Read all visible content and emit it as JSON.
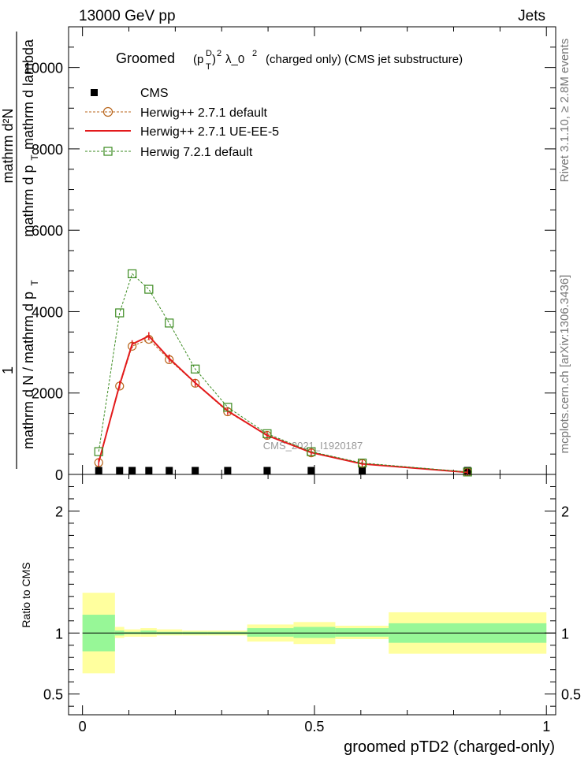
{
  "header": {
    "left": "13000 GeV pp",
    "right": "Jets"
  },
  "side_labels": {
    "rivet": "Rivet 3.1.10, ≥ 2.8M events",
    "mcplots": "mcplots.cern.ch [arXiv:1306.3436]"
  },
  "chart_data": [
    {
      "type": "line",
      "title": "Groomed (p_T^D)^2 λ_0^2 (charged only) (CMS jet substructure)",
      "title_parts": {
        "word": "Groomed",
        "p": "(p",
        "sup_D": "D",
        "sub_T": "T",
        "close": ")",
        "sup_2a": "2",
        "lambda": "λ_0",
        "sup_2b": "2",
        "rest": "(charged only) (CMS jet substructure)"
      },
      "ylabel_numerator_main": "1",
      "ylabel_numerator": "mathrm d²N",
      "ylabel_den_prefix": "mathrm d p",
      "ylabel_den_sub": "T",
      "ylabel_den_suffix": "mathrm d lambda",
      "ylabel_main_prefix": "mathrm d N / mathrm d p",
      "ylabel_main_sub": "T",
      "watermark": "CMS_2021_I1920187",
      "ylim": [
        0,
        11000
      ],
      "xlim": [
        -0.03,
        1.02
      ],
      "yticks": [
        0,
        2000,
        4000,
        6000,
        8000,
        10000
      ],
      "ytick_labels": [
        "0",
        "2000",
        "4000",
        "6000",
        "8000",
        "10000"
      ],
      "legend_position": "top-left",
      "legend": [
        "CMS",
        "Herwig++ 2.7.1 default",
        "Herwig++ 2.7.1 UE-EE-5",
        "Herwig 7.2.1 default"
      ],
      "bin_edges": [
        0,
        0.07,
        0.09,
        0.125,
        0.16,
        0.215,
        0.27,
        0.355,
        0.455,
        0.545,
        0.66,
        1.0
      ],
      "x": [
        0.035,
        0.08,
        0.107,
        0.143,
        0.187,
        0.243,
        0.313,
        0.398,
        0.493,
        0.603,
        0.83
      ],
      "series": [
        {
          "name": "CMS",
          "values": [
            10,
            20,
            30,
            25,
            20,
            15,
            10,
            10,
            10,
            10,
            5
          ],
          "color": "#000000",
          "style": "square-filled"
        },
        {
          "name": "Herwig++ 2.7.1 default",
          "values": [
            290,
            2170,
            3150,
            3320,
            2820,
            2240,
            1540,
            960,
            530,
            270,
            60
          ],
          "color": "#b8651b",
          "style": "circle-dashed"
        },
        {
          "name": "Herwig++ 2.7.1 UE-EE-5",
          "values": [
            300,
            2200,
            3200,
            3400,
            2850,
            2250,
            1560,
            960,
            540,
            260,
            50
          ],
          "color": "#e31a1c",
          "style": "solid"
        },
        {
          "name": "Herwig 7.2.1 default",
          "values": [
            560,
            3970,
            4930,
            4550,
            3720,
            2590,
            1650,
            1000,
            560,
            280,
            60
          ],
          "color": "#3a8a1f",
          "style": "square-dashed"
        }
      ]
    },
    {
      "type": "area",
      "ylabel": "Ratio to CMS",
      "xlabel": "groomed pTD2 (charged-only)",
      "ylim": [
        0.33,
        2.3
      ],
      "yticks": [
        0.5,
        1,
        2
      ],
      "ytick_labels": [
        "0.5",
        "1",
        "2"
      ],
      "xticks": [
        0,
        0.5,
        1
      ],
      "xtick_labels": [
        "0",
        "0.5",
        "1"
      ],
      "bands": {
        "stat_color": "#97f797",
        "syst_color": "#ffff9e",
        "stat_lo": [
          0.85,
          0.98,
          0.99,
          0.99,
          0.99,
          0.99,
          0.99,
          0.97,
          0.96,
          0.97,
          0.92
        ],
        "stat_hi": [
          1.15,
          1.02,
          1.01,
          1.02,
          1.01,
          1.01,
          1.01,
          1.04,
          1.05,
          1.04,
          1.08
        ],
        "syst_lo": [
          0.67,
          0.96,
          0.97,
          0.97,
          0.98,
          0.98,
          0.98,
          0.93,
          0.91,
          0.95,
          0.83
        ],
        "syst_hi": [
          1.33,
          1.05,
          1.03,
          1.04,
          1.03,
          1.02,
          1.02,
          1.07,
          1.09,
          1.06,
          1.17
        ]
      }
    }
  ]
}
